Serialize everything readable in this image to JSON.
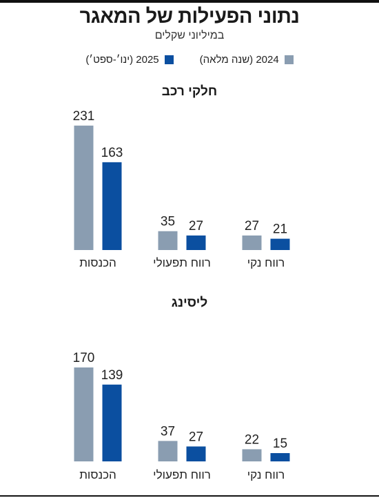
{
  "title": "נתוני הפעילות של המאגר",
  "subtitle": "במיליוני שקלים",
  "legend": [
    {
      "label": "2024 (שנה מלאה)",
      "color": "#8a9db1"
    },
    {
      "label": "2025 (ינו׳-ספט׳)",
      "color": "#0b4fa0"
    }
  ],
  "sections": [
    "חלקי רכב",
    "ליסינג"
  ],
  "chart_data": [
    {
      "type": "bar",
      "title": "חלקי רכב",
      "categories": [
        "הכנסות",
        "רווח תפעולי",
        "רווח נקי"
      ],
      "series": [
        {
          "name": "2024 (שנה מלאה)",
          "values": [
            231,
            35,
            27
          ]
        },
        {
          "name": "2025 (ינו׳-ספט׳)",
          "values": [
            163,
            27,
            21
          ]
        }
      ]
    },
    {
      "type": "bar",
      "title": "ליסינג",
      "categories": [
        "הכנסות",
        "רווח תפעולי",
        "רווח נקי"
      ],
      "series": [
        {
          "name": "2024 (שנה מלאה)",
          "values": [
            170,
            37,
            22
          ]
        },
        {
          "name": "2025 (ינו׳-ספט׳)",
          "values": [
            139,
            27,
            15
          ]
        }
      ]
    }
  ]
}
